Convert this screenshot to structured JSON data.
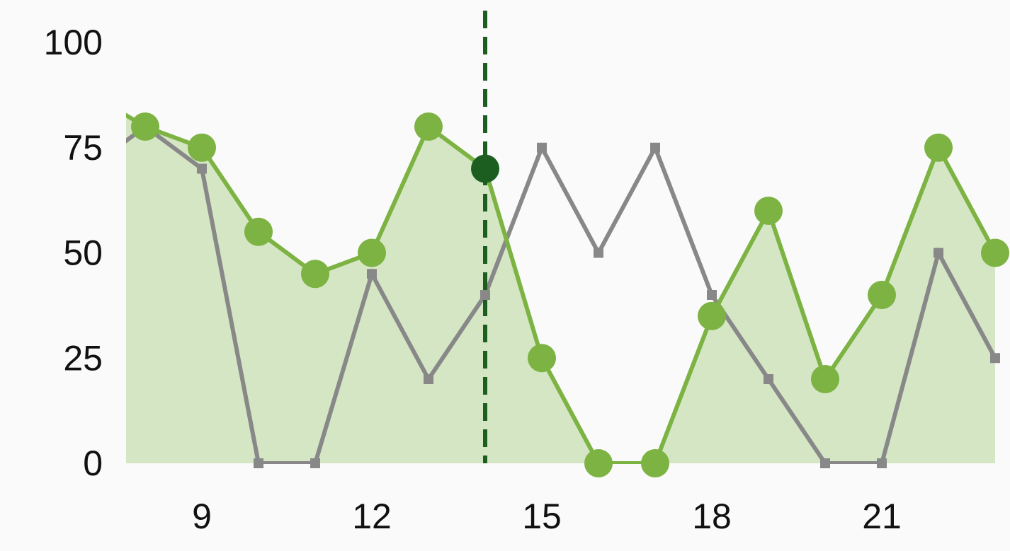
{
  "chart_data": {
    "type": "line",
    "x": [
      7,
      8,
      9,
      10,
      11,
      12,
      13,
      14,
      15,
      16,
      17,
      18,
      19,
      20,
      21,
      22,
      23
    ],
    "x_ticks": [
      9,
      12,
      15,
      18,
      21
    ],
    "y_ticks": [
      0,
      25,
      50,
      75,
      100
    ],
    "xlim": [
      7,
      23
    ],
    "ylim": [
      0,
      100
    ],
    "grid": false,
    "legend": "none",
    "series": [
      {
        "key": "green",
        "values": [
          88,
          80,
          75,
          55,
          45,
          50,
          80,
          70,
          25,
          0,
          0,
          35,
          60,
          20,
          40,
          75,
          50
        ],
        "color": "#7cb342",
        "fill_color": "#d5e6c5",
        "area": true,
        "marker": "circle",
        "show_first_marker": false
      },
      {
        "key": "gray",
        "values": [
          70,
          80,
          70,
          0,
          0,
          45,
          20,
          40,
          75,
          50,
          75,
          40,
          20,
          0,
          0,
          50,
          25
        ],
        "color": "#888888",
        "area": false,
        "marker": "square",
        "show_first_marker": false
      }
    ],
    "annotation": {
      "type": "vertical-dashed-line",
      "x": 14,
      "color": "#1b5e20",
      "highlight_series": "green",
      "highlight_point": {
        "x": 14,
        "y": 70
      }
    }
  }
}
